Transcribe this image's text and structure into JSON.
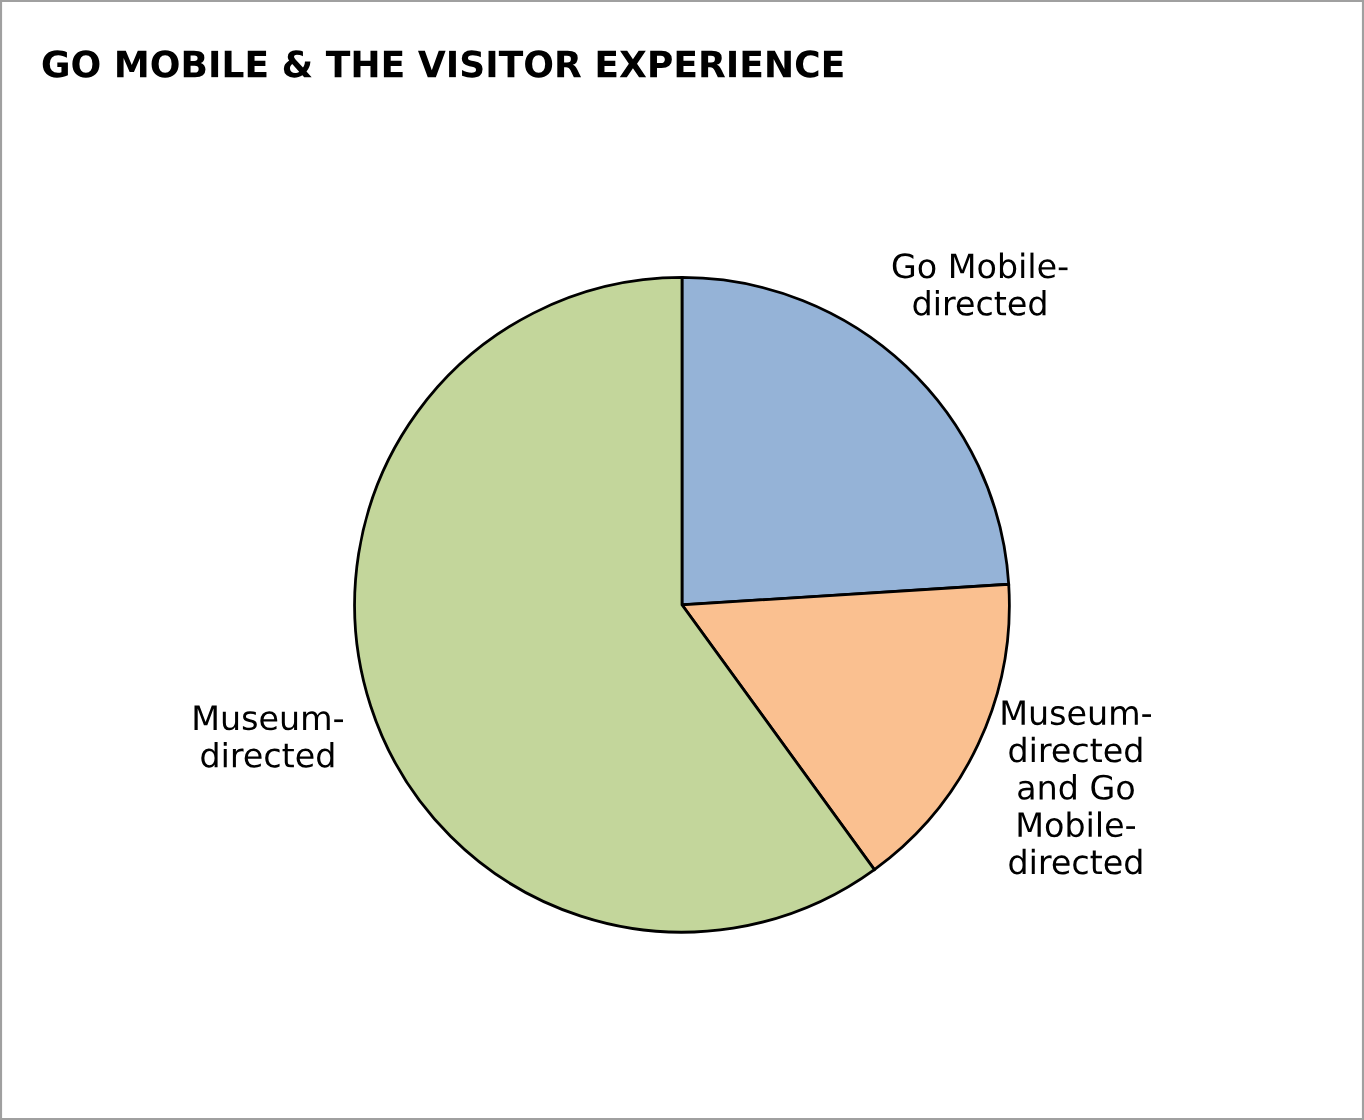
{
  "chart_data": {
    "type": "pie",
    "title": "GO MOBILE & THE VISITOR EXPERIENCE",
    "categories": [
      "Go Mobile-\ndirected",
      "Museum-\ndirected\nand Go\nMobile-\ndirected",
      "Museum-\ndirected"
    ],
    "values": [
      24,
      16,
      60
    ],
    "colors": [
      "#95b3d7",
      "#fac090",
      "#c3d69b"
    ]
  }
}
